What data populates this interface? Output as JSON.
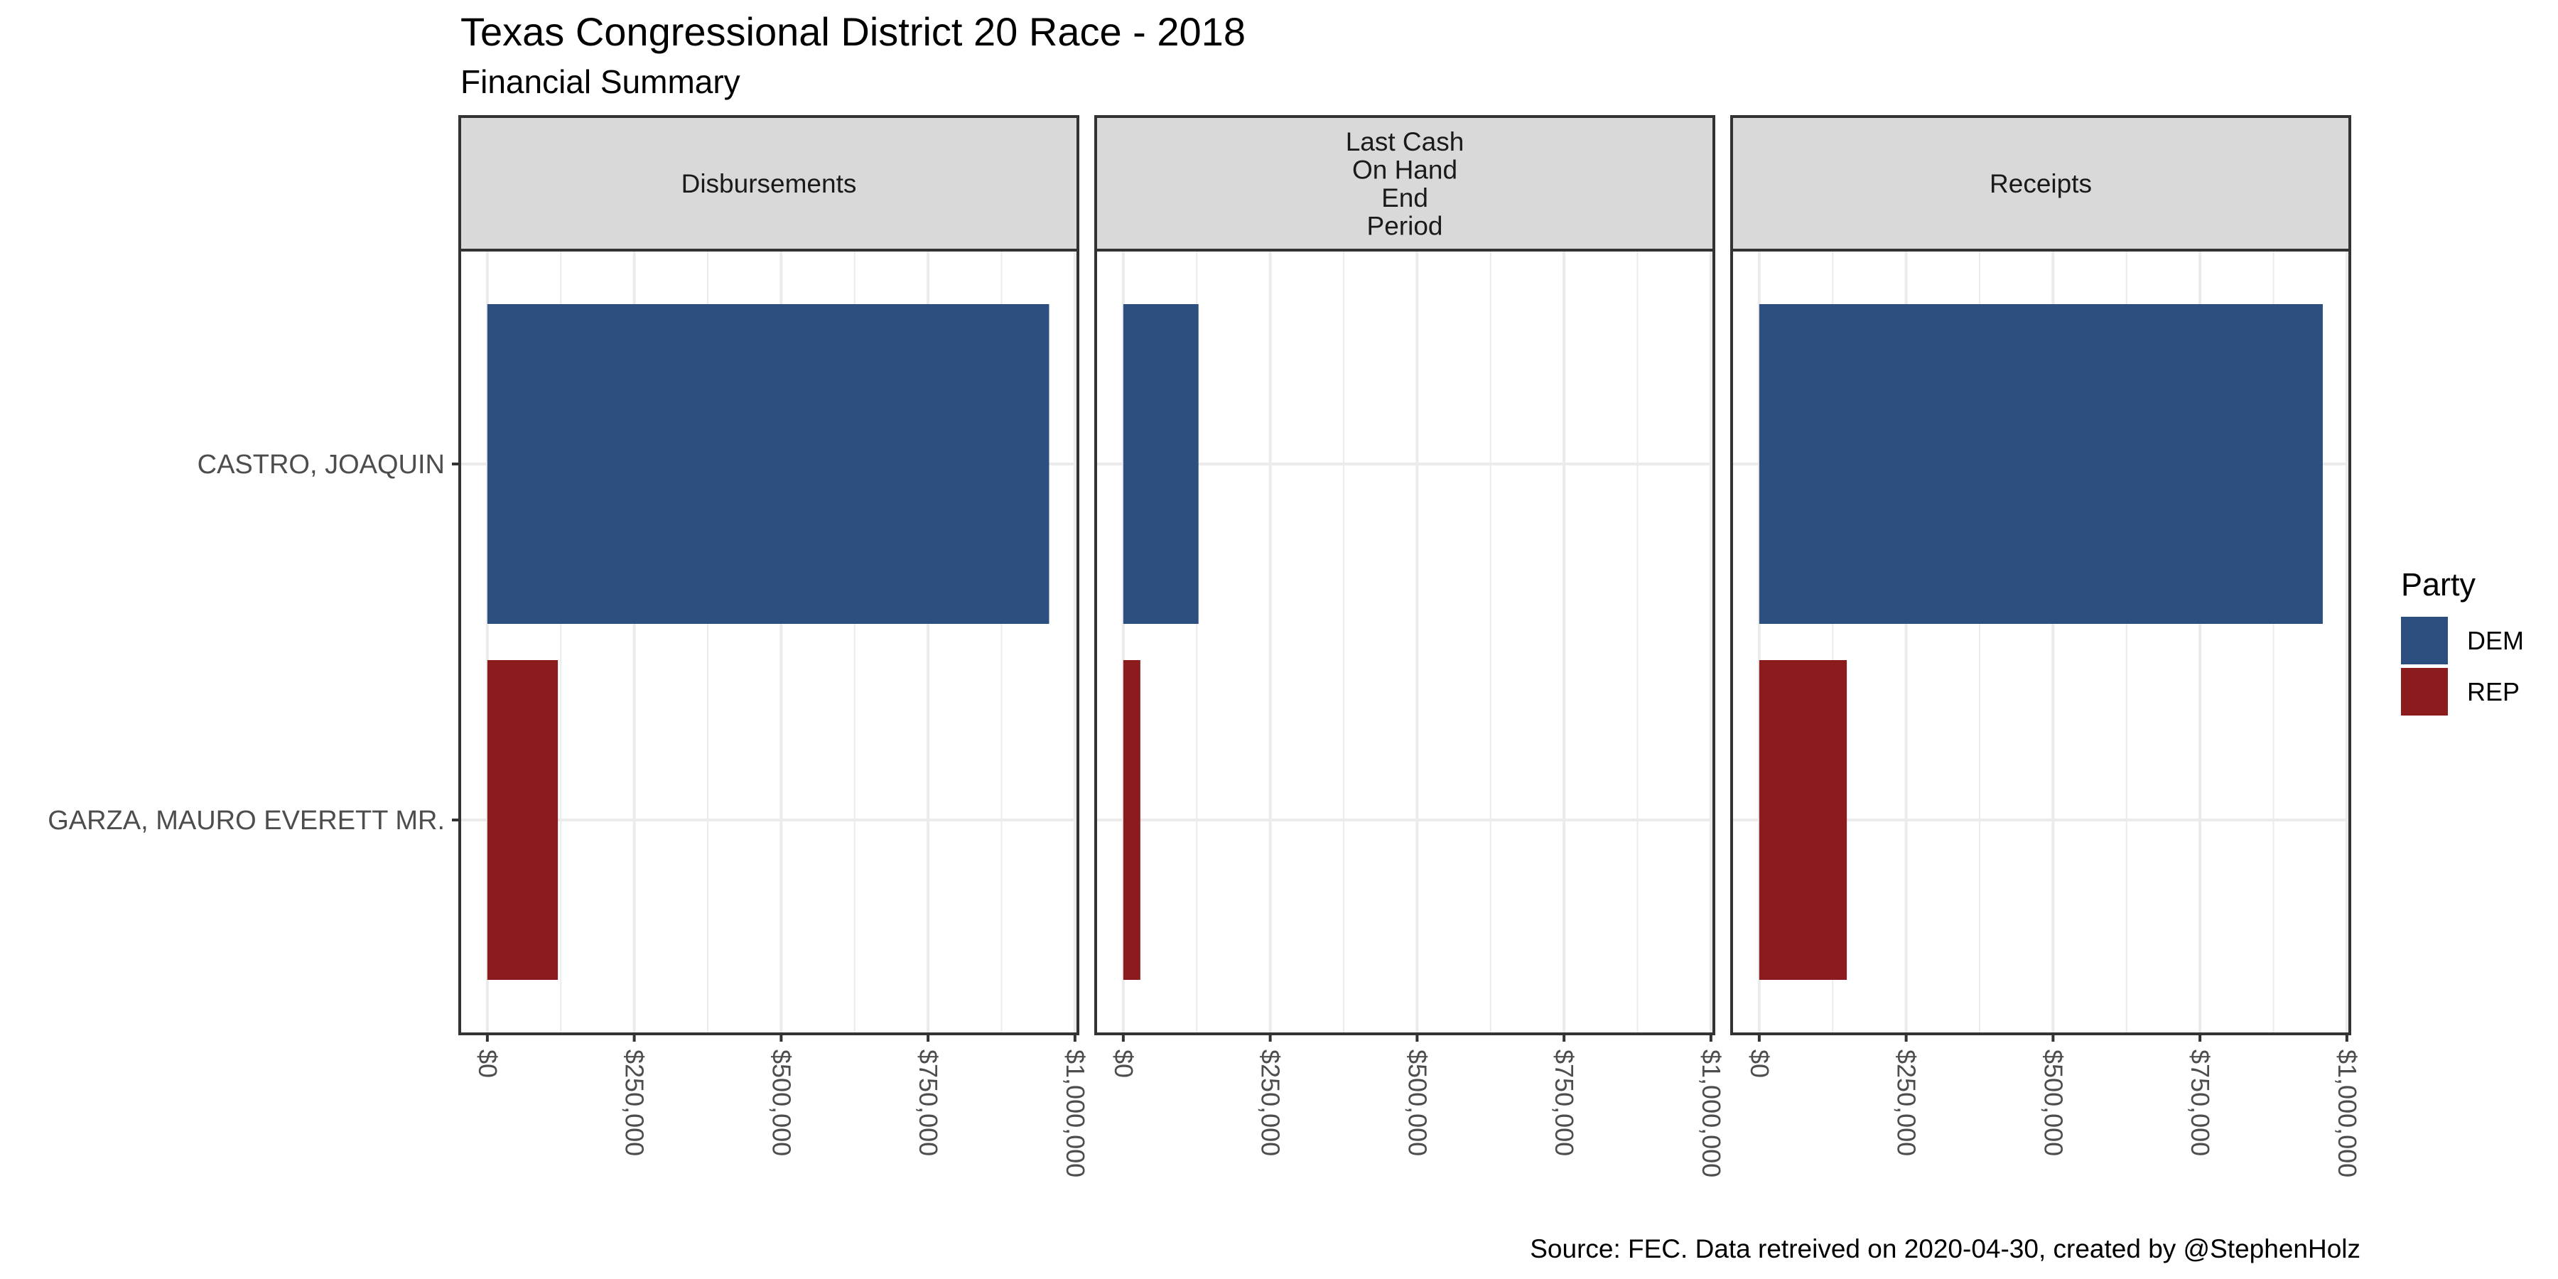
{
  "chart_data": {
    "type": "bar",
    "orientation": "horizontal",
    "title": "Texas Congressional District 20 Race - 2018",
    "subtitle": "Financial Summary",
    "caption": "Source: FEC. Data retreived on 2020-04-30, created by @StephenHolz",
    "categories": [
      "CASTRO, JOAQUIN",
      "GARZA, MAURO EVERETT MR."
    ],
    "category_party": [
      "DEM",
      "REP"
    ],
    "facets": [
      {
        "label": "Disbursements",
        "values": [
          956000,
          120000
        ]
      },
      {
        "label": "Last Cash\nOn Hand\nEnd\nPeriod",
        "values": [
          128000,
          29000
        ]
      },
      {
        "label": "Receipts",
        "values": [
          959000,
          149000
        ]
      }
    ],
    "x_ticks": [
      0,
      250000,
      500000,
      750000,
      1000000
    ],
    "x_tick_labels": [
      "$0",
      "$250,000",
      "$500,000",
      "$750,000",
      "$1,000,000"
    ],
    "xlim": [
      -47000,
      1005000
    ],
    "xlabel": "",
    "ylabel": "",
    "grid": true,
    "legend": {
      "title": "Party",
      "position": "right",
      "entries": [
        {
          "label": "DEM",
          "color": "#2c4f80"
        },
        {
          "label": "REP",
          "color": "#8b1b1d"
        }
      ]
    }
  },
  "colors": {
    "strip_bg": "#d9d9d9",
    "panel_border": "#333333",
    "grid_major": "#ebebeb",
    "grid_minor": "#ebebeb"
  }
}
